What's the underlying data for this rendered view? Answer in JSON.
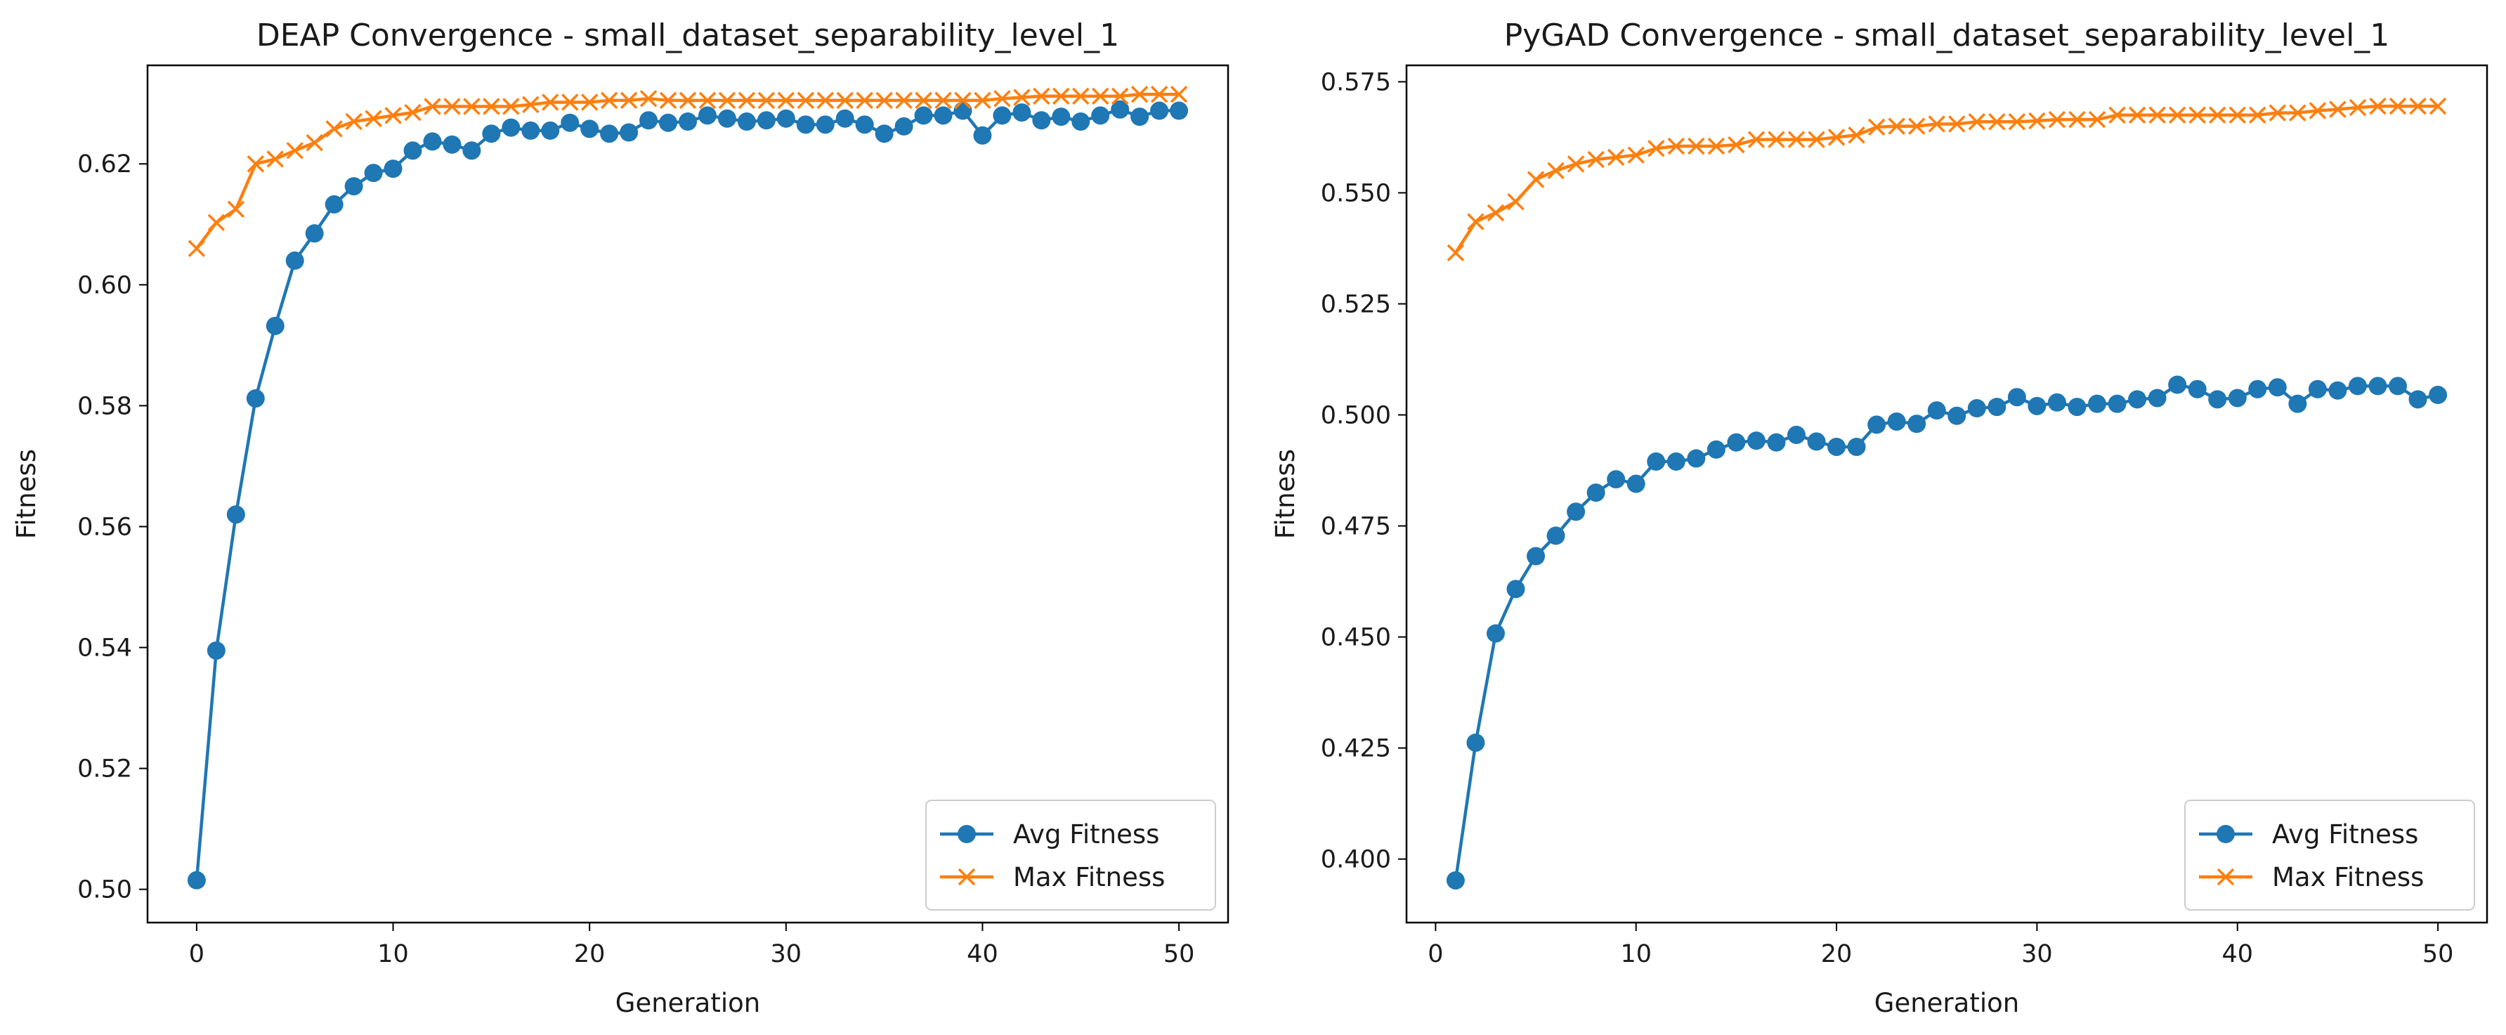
{
  "chart_data": [
    {
      "type": "line",
      "title": "DEAP Convergence - small_dataset_separability_level_1",
      "xlabel": "Generation",
      "ylabel": "Fitness",
      "xlim": [
        -2.5,
        52.5
      ],
      "ylim": [
        0.4945,
        0.6363
      ],
      "xticks": [
        0,
        10,
        20,
        30,
        40,
        50
      ],
      "yticks": [
        0.5,
        0.52,
        0.54,
        0.56,
        0.58,
        0.6,
        0.62
      ],
      "ytick_labels": [
        "0.50",
        "0.52",
        "0.54",
        "0.56",
        "0.58",
        "0.60",
        "0.62"
      ],
      "grid": false,
      "legend_position": "lower-right",
      "x": [
        0,
        1,
        2,
        3,
        4,
        5,
        6,
        7,
        8,
        9,
        10,
        11,
        12,
        13,
        14,
        15,
        16,
        17,
        18,
        19,
        20,
        21,
        22,
        23,
        24,
        25,
        26,
        27,
        28,
        29,
        30,
        31,
        32,
        33,
        34,
        35,
        36,
        37,
        38,
        39,
        40,
        41,
        42,
        43,
        44,
        45,
        46,
        47,
        48,
        49,
        50
      ],
      "series": [
        {
          "name": "Avg Fitness",
          "color": "#1f77b4",
          "marker": "circle",
          "values": [
            0.5015,
            0.5395,
            0.562,
            0.5812,
            0.5932,
            0.604,
            0.6085,
            0.6133,
            0.6163,
            0.6185,
            0.6192,
            0.6222,
            0.6237,
            0.6232,
            0.6222,
            0.625,
            0.626,
            0.6255,
            0.6255,
            0.6268,
            0.6258,
            0.625,
            0.6252,
            0.6272,
            0.6268,
            0.627,
            0.628,
            0.6275,
            0.627,
            0.6272,
            0.6275,
            0.6265,
            0.6265,
            0.6275,
            0.6265,
            0.625,
            0.6262,
            0.628,
            0.628,
            0.6288,
            0.6247,
            0.628,
            0.6285,
            0.6272,
            0.6278,
            0.627,
            0.628,
            0.629,
            0.6278,
            0.6288,
            0.6288
          ]
        },
        {
          "name": "Max Fitness",
          "color": "#ff7f0e",
          "marker": "x",
          "values": [
            0.606,
            0.6103,
            0.6125,
            0.62,
            0.6208,
            0.6222,
            0.6235,
            0.6258,
            0.627,
            0.6275,
            0.628,
            0.6285,
            0.6295,
            0.6295,
            0.6295,
            0.6295,
            0.6295,
            0.6298,
            0.6302,
            0.6302,
            0.6302,
            0.6305,
            0.6305,
            0.6308,
            0.6305,
            0.6305,
            0.6305,
            0.6305,
            0.6305,
            0.6305,
            0.6305,
            0.6305,
            0.6305,
            0.6305,
            0.6305,
            0.6305,
            0.6305,
            0.6305,
            0.6305,
            0.6305,
            0.6305,
            0.6308,
            0.631,
            0.6312,
            0.6312,
            0.6312,
            0.6312,
            0.6312,
            0.6315,
            0.6315,
            0.6315
          ]
        }
      ]
    },
    {
      "type": "line",
      "title": "PyGAD Convergence - small_dataset_separability_level_1",
      "xlabel": "Generation",
      "ylabel": "Fitness",
      "xlim": [
        -1.45,
        52.45
      ],
      "ylim": [
        0.3857,
        0.5787
      ],
      "xticks": [
        0,
        10,
        20,
        30,
        40,
        50
      ],
      "yticks": [
        0.4,
        0.425,
        0.45,
        0.475,
        0.5,
        0.525,
        0.55,
        0.575
      ],
      "ytick_labels": [
        "0.400",
        "0.425",
        "0.450",
        "0.475",
        "0.500",
        "0.525",
        "0.550",
        "0.575"
      ],
      "grid": false,
      "legend_position": "lower-right",
      "x": [
        1,
        2,
        3,
        4,
        5,
        6,
        7,
        8,
        9,
        10,
        11,
        12,
        13,
        14,
        15,
        16,
        17,
        18,
        19,
        20,
        21,
        22,
        23,
        24,
        25,
        26,
        27,
        28,
        29,
        30,
        31,
        32,
        33,
        34,
        35,
        36,
        37,
        38,
        39,
        40,
        41,
        42,
        43,
        44,
        45,
        46,
        47,
        48,
        49,
        50
      ],
      "series": [
        {
          "name": "Avg Fitness",
          "color": "#1f77b4",
          "marker": "circle",
          "values": [
            0.3952,
            0.4262,
            0.4508,
            0.4608,
            0.4682,
            0.4728,
            0.4782,
            0.4825,
            0.4855,
            0.4845,
            0.4895,
            0.4895,
            0.4902,
            0.4922,
            0.4938,
            0.4942,
            0.4938,
            0.4955,
            0.494,
            0.4928,
            0.4928,
            0.4978,
            0.4985,
            0.498,
            0.501,
            0.4998,
            0.5015,
            0.5018,
            0.504,
            0.502,
            0.5028,
            0.5018,
            0.5025,
            0.5025,
            0.5035,
            0.5038,
            0.5068,
            0.5058,
            0.5035,
            0.5038,
            0.5058,
            0.5062,
            0.5025,
            0.5058,
            0.5055,
            0.5065,
            0.5065,
            0.5065,
            0.5035,
            0.5045
          ]
        },
        {
          "name": "Max Fitness",
          "color": "#ff7f0e",
          "marker": "x",
          "values": [
            0.5365,
            0.5435,
            0.5455,
            0.548,
            0.553,
            0.555,
            0.5565,
            0.5575,
            0.558,
            0.5585,
            0.56,
            0.5605,
            0.5605,
            0.5605,
            0.5608,
            0.562,
            0.562,
            0.562,
            0.562,
            0.5625,
            0.563,
            0.5648,
            0.565,
            0.565,
            0.5655,
            0.5655,
            0.566,
            0.566,
            0.566,
            0.5662,
            0.5665,
            0.5665,
            0.5665,
            0.5675,
            0.5675,
            0.5675,
            0.5675,
            0.5675,
            0.5675,
            0.5675,
            0.5675,
            0.568,
            0.568,
            0.5685,
            0.5688,
            0.5692,
            0.5695,
            0.5695,
            0.5695,
            0.5695
          ]
        }
      ]
    }
  ]
}
